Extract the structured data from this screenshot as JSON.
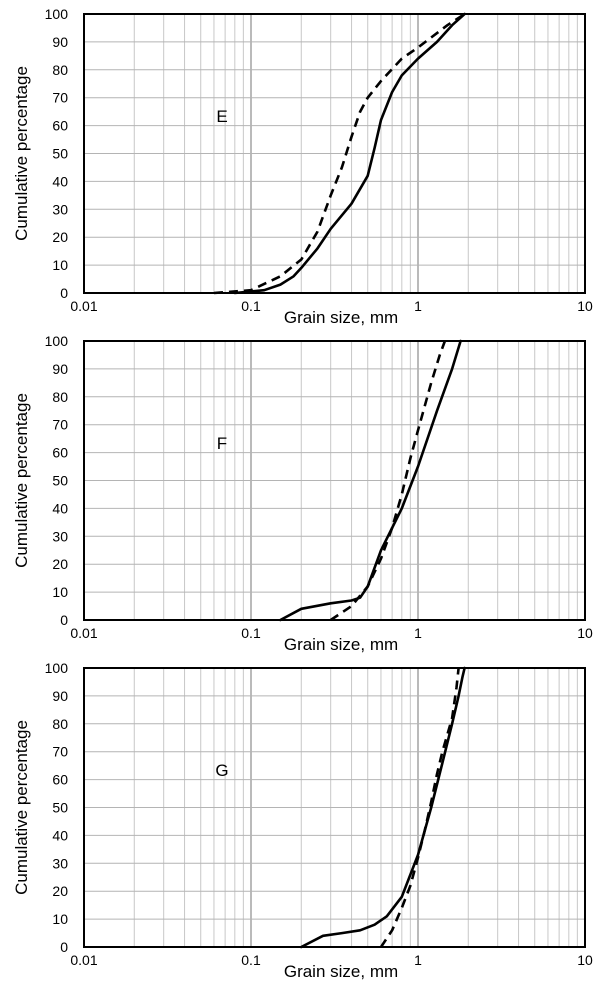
{
  "chart_data": [
    {
      "type": "line",
      "panel_label": "E",
      "xlabel": "Grain size, mm",
      "ylabel": "Cumulative percentage",
      "xscale": "log",
      "xlim": [
        0.01,
        10
      ],
      "ylim": [
        0,
        100
      ],
      "x_ticks": [
        "0.01",
        "0.1",
        "1",
        "10"
      ],
      "y_ticks": [
        "0",
        "10",
        "20",
        "30",
        "40",
        "50",
        "60",
        "70",
        "80",
        "90",
        "100"
      ],
      "grid": true,
      "series": [
        {
          "style": "solid",
          "points": [
            [
              0.08,
              0
            ],
            [
              0.12,
              1
            ],
            [
              0.15,
              3
            ],
            [
              0.18,
              6
            ],
            [
              0.2,
              9
            ],
            [
              0.25,
              16
            ],
            [
              0.3,
              23
            ],
            [
              0.4,
              32
            ],
            [
              0.5,
              42
            ],
            [
              0.55,
              52
            ],
            [
              0.6,
              62
            ],
            [
              0.7,
              72
            ],
            [
              0.8,
              78
            ],
            [
              1.0,
              84
            ],
            [
              1.3,
              90
            ],
            [
              1.6,
              96
            ],
            [
              1.9,
              100
            ]
          ]
        },
        {
          "style": "dashed",
          "points": [
            [
              0.06,
              0
            ],
            [
              0.1,
              1
            ],
            [
              0.15,
              6
            ],
            [
              0.2,
              12
            ],
            [
              0.25,
              22
            ],
            [
              0.3,
              35
            ],
            [
              0.35,
              45
            ],
            [
              0.4,
              56
            ],
            [
              0.45,
              65
            ],
            [
              0.5,
              70
            ],
            [
              0.6,
              76
            ],
            [
              0.8,
              84
            ],
            [
              1.0,
              88
            ],
            [
              1.5,
              96
            ],
            [
              1.9,
              100
            ]
          ]
        }
      ]
    },
    {
      "type": "line",
      "panel_label": "F",
      "xlabel": "Grain size, mm",
      "ylabel": "Cumulative percentage",
      "xscale": "log",
      "xlim": [
        0.01,
        10
      ],
      "ylim": [
        0,
        100
      ],
      "x_ticks": [
        "0.01",
        "0.1",
        "1",
        "10"
      ],
      "y_ticks": [
        "0",
        "10",
        "20",
        "30",
        "40",
        "50",
        "60",
        "70",
        "80",
        "90",
        "100"
      ],
      "grid": true,
      "series": [
        {
          "style": "solid",
          "points": [
            [
              0.15,
              0
            ],
            [
              0.2,
              4
            ],
            [
              0.3,
              6
            ],
            [
              0.4,
              7
            ],
            [
              0.45,
              8
            ],
            [
              0.5,
              12
            ],
            [
              0.6,
              25
            ],
            [
              0.8,
              40
            ],
            [
              1.0,
              55
            ],
            [
              1.3,
              75
            ],
            [
              1.6,
              90
            ],
            [
              1.8,
              100
            ]
          ]
        },
        {
          "style": "dashed",
          "points": [
            [
              0.3,
              0
            ],
            [
              0.4,
              5
            ],
            [
              0.5,
              12
            ],
            [
              0.6,
              22
            ],
            [
              0.7,
              33
            ],
            [
              0.8,
              45
            ],
            [
              0.9,
              58
            ],
            [
              1.0,
              68
            ],
            [
              1.2,
              85
            ],
            [
              1.35,
              95
            ],
            [
              1.45,
              100
            ]
          ]
        }
      ]
    },
    {
      "type": "line",
      "panel_label": "G",
      "xlabel": "Grain size, mm",
      "ylabel": "Cumulative percentage",
      "xscale": "log",
      "xlim": [
        0.01,
        10
      ],
      "ylim": [
        0,
        100
      ],
      "x_ticks": [
        "0.01",
        "0.1",
        "1",
        "10"
      ],
      "y_ticks": [
        "0",
        "10",
        "20",
        "30",
        "40",
        "50",
        "60",
        "70",
        "80",
        "90",
        "100"
      ],
      "grid": true,
      "series": [
        {
          "style": "solid",
          "points": [
            [
              0.2,
              0
            ],
            [
              0.27,
              4
            ],
            [
              0.35,
              5
            ],
            [
              0.45,
              6
            ],
            [
              0.55,
              8
            ],
            [
              0.65,
              11
            ],
            [
              0.8,
              18
            ],
            [
              1.0,
              33
            ],
            [
              1.2,
              50
            ],
            [
              1.4,
              66
            ],
            [
              1.6,
              80
            ],
            [
              1.75,
              90
            ],
            [
              1.85,
              97
            ],
            [
              1.9,
              100
            ]
          ]
        },
        {
          "style": "dashed",
          "points": [
            [
              0.6,
              0
            ],
            [
              0.7,
              6
            ],
            [
              0.8,
              14
            ],
            [
              0.9,
              22
            ],
            [
              1.0,
              32
            ],
            [
              1.1,
              42
            ],
            [
              1.2,
              52
            ],
            [
              1.3,
              62
            ],
            [
              1.4,
              70
            ],
            [
              1.6,
              82
            ],
            [
              1.7,
              93
            ],
            [
              1.75,
              100
            ]
          ]
        }
      ]
    }
  ]
}
